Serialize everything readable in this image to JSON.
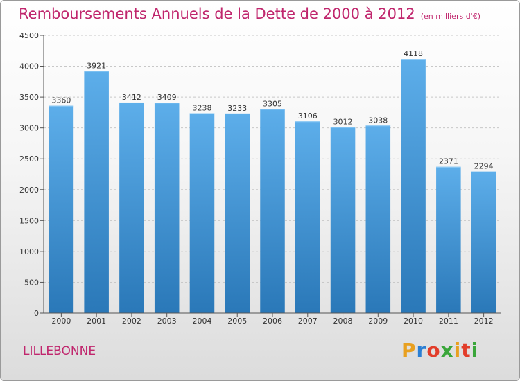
{
  "header": {
    "title": "Remboursements Annuels de la Dette de 2000 à 2012",
    "unit_note": "(en milliers d'€)"
  },
  "footer": {
    "city": "LILLEBONNE",
    "logo": "Proxiti",
    "logo_colors": [
      "#e8a020",
      "#2b7fd4",
      "#e23d2a",
      "#3aa63a",
      "#e8a020",
      "#e23d2a",
      "#3aa63a"
    ]
  },
  "chart_data": {
    "type": "bar",
    "title": "Remboursements Annuels de la Dette de 2000 à 2012",
    "subtitle": "(en milliers d'€)",
    "categories": [
      "2000",
      "2001",
      "2002",
      "2003",
      "2004",
      "2005",
      "2006",
      "2007",
      "2008",
      "2009",
      "2010",
      "2011",
      "2012"
    ],
    "values": [
      3360,
      3921,
      3412,
      3409,
      3238,
      3233,
      3305,
      3106,
      3012,
      3038,
      4118,
      2371,
      2294
    ],
    "ylim": [
      0,
      4500
    ],
    "yticks": [
      0,
      500,
      1000,
      1500,
      2000,
      2500,
      3000,
      3500,
      4000,
      4500
    ],
    "grid": true,
    "bar_color_top": "#5daeea",
    "bar_color_bottom": "#2a78b8",
    "xlabel": "",
    "ylabel": ""
  }
}
